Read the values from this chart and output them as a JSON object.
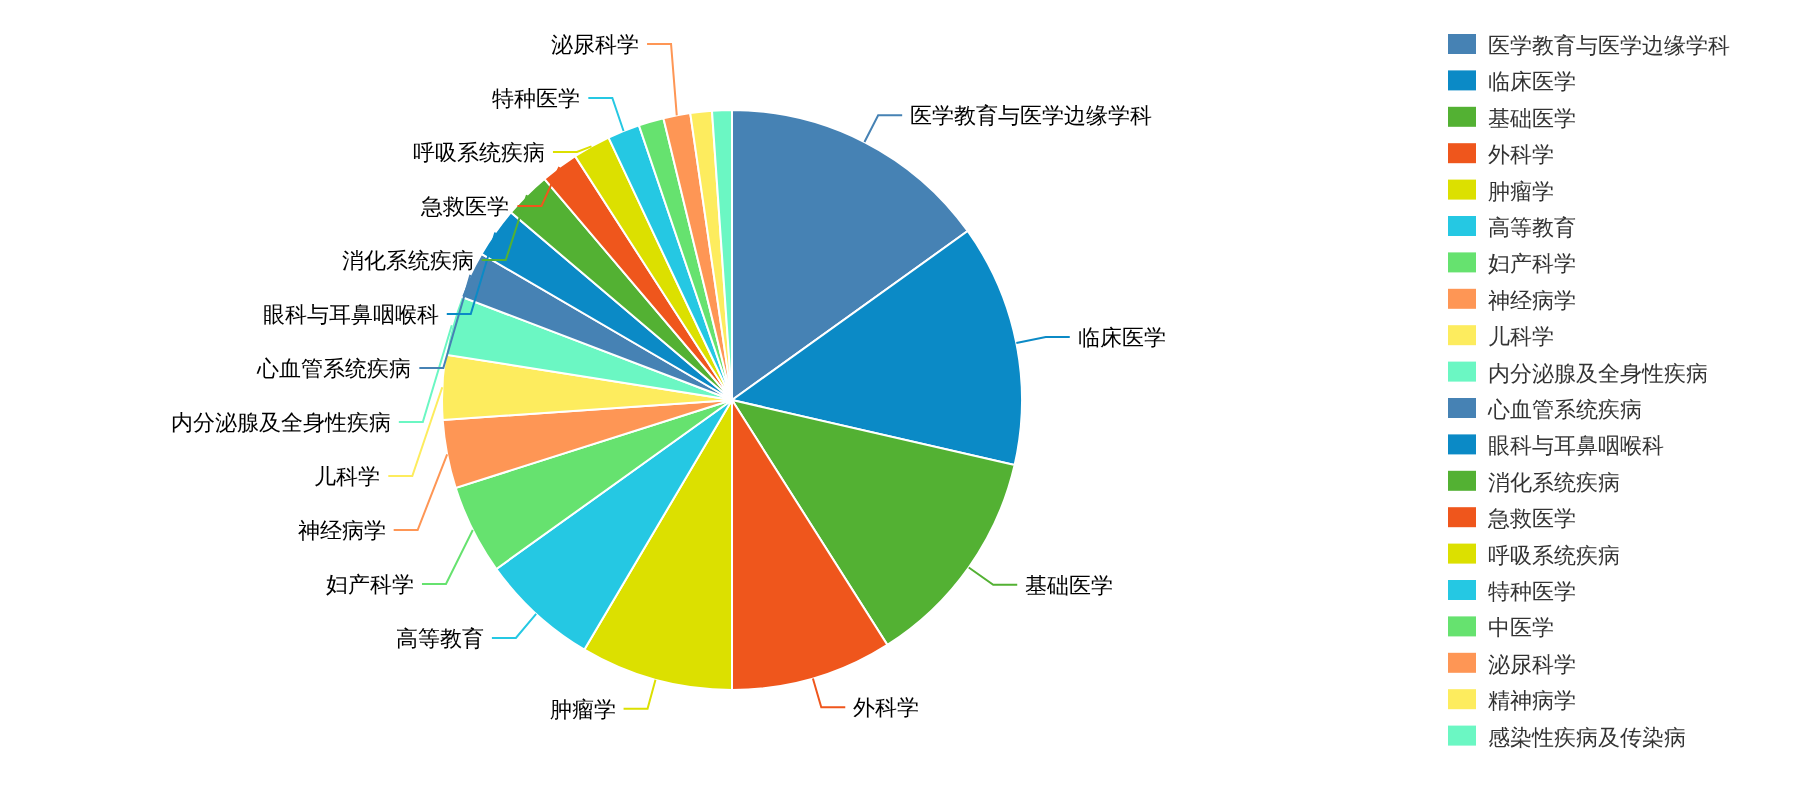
{
  "chart_data": {
    "type": "pie",
    "legend": "right",
    "categories": [
      "医学教育与医学边缘学科",
      "临床医学",
      "基础医学",
      "外科学",
      "肿瘤学",
      "高等教育",
      "妇产科学",
      "神经病学",
      "儿科学",
      "内分泌腺及全身性疾病",
      "心血管系统疾病",
      "眼科与耳鼻咽喉科",
      "消化系统疾病",
      "急救医学",
      "呼吸系统疾病",
      "特种医学",
      "中医学",
      "泌尿科学",
      "精神病学",
      "感染性疾病及传染病"
    ],
    "values": [
      15.1,
      13.5,
      12.4,
      9.0,
      8.5,
      6.6,
      5.0,
      3.8,
      3.6,
      3.3,
      2.6,
      2.8,
      2.6,
      2.1,
      2.1,
      1.8,
      1.4,
      1.5,
      1.2,
      1.1
    ],
    "colors": [
      "#4682b4",
      "#0b8ac6",
      "#53b133",
      "#ef561c",
      "#dce000",
      "#25c8e3",
      "#66e26f",
      "#fe9655",
      "#fdec5e",
      "#6bf7c3",
      "#4682b4",
      "#0b8ac6",
      "#53b133",
      "#ef561c",
      "#dce000",
      "#25c8e3",
      "#66e26f",
      "#fe9655",
      "#fdec5e",
      "#6bf7c3"
    ]
  }
}
